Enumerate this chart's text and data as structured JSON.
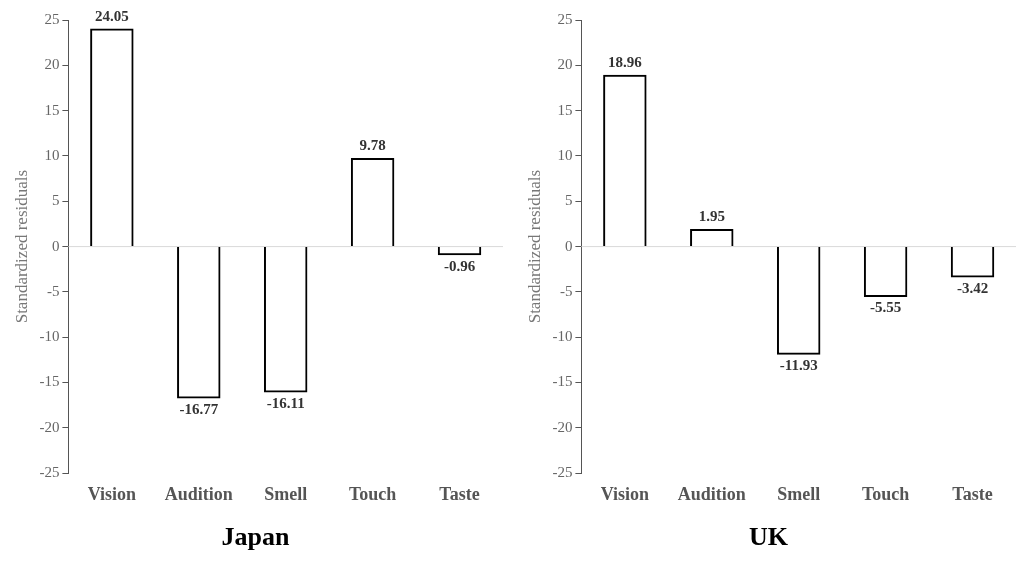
{
  "chart_data": [
    {
      "type": "bar",
      "title": "Japan",
      "ylabel": "Standardized residuals",
      "categories": [
        "Vision",
        "Audition",
        "Smell",
        "Touch",
        "Taste"
      ],
      "values": [
        24.05,
        -16.77,
        -16.11,
        9.78,
        -0.96
      ],
      "color": "#000000",
      "ylim": [
        -25,
        25
      ],
      "yticks": [
        -25,
        -20,
        -15,
        -10,
        -5,
        0,
        5,
        10,
        15,
        20,
        25
      ],
      "grid": false,
      "data_labels": true,
      "ref_lines": [
        {
          "axis": "y",
          "value": 0,
          "color": "#d9d9d9"
        }
      ]
    },
    {
      "type": "bar",
      "title": "UK",
      "ylabel": "Standardized residuals",
      "categories": [
        "Vision",
        "Audition",
        "Smell",
        "Touch",
        "Taste"
      ],
      "values": [
        18.96,
        1.95,
        -11.93,
        -5.55,
        -3.42
      ],
      "color": "#000000",
      "ylim": [
        -25,
        25
      ],
      "yticks": [
        -25,
        -20,
        -15,
        -10,
        -5,
        0,
        5,
        10,
        15,
        20,
        25
      ],
      "grid": false,
      "data_labels": true,
      "ref_lines": [
        {
          "axis": "y",
          "value": 0,
          "color": "#d9d9d9"
        }
      ]
    }
  ]
}
